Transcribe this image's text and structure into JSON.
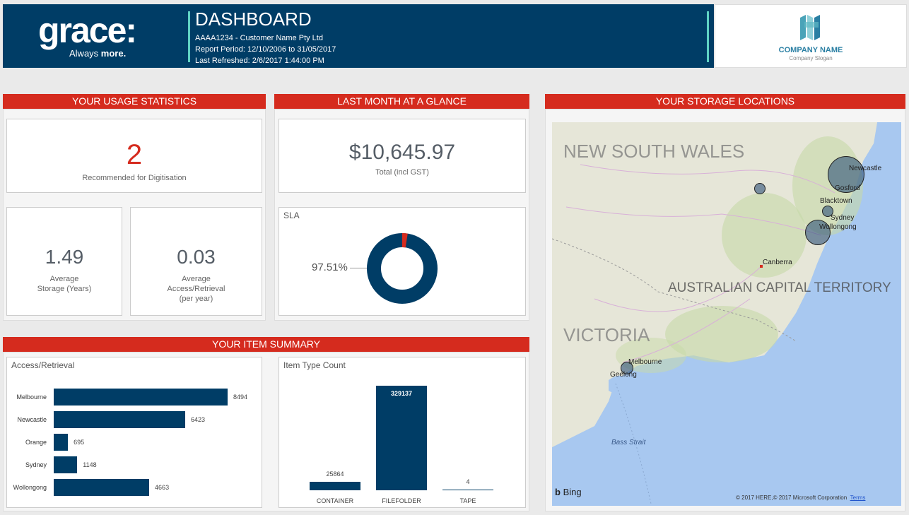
{
  "header": {
    "logo_word": "grace:",
    "logo_tagline_a": "Always ",
    "logo_tagline_b": "more.",
    "title": "DASHBOARD",
    "customer": "AAAA1234 - Customer Name Pty Ltd",
    "report_period": "Report Period:  12/10/2006    to    31/05/2017",
    "last_refreshed": "Last Refreshed: 2/6/2017 1:44:00 PM",
    "company_name": "COMPANY NAME",
    "company_slogan": "Company Slogan"
  },
  "usage": {
    "title": "YOUR USAGE STATISTICS",
    "recommended_value": "2",
    "recommended_label": "Recommended for Digitisation",
    "storage_value": "1.49",
    "storage_label_1": "Average",
    "storage_label_2": "Storage (Years)",
    "access_value": "0.03",
    "access_label_1": "Average",
    "access_label_2": "Access/Retrieval",
    "access_label_3": "(per year)"
  },
  "glance": {
    "title": "LAST MONTH AT A GLANCE",
    "total_value": "$10,645.97",
    "total_label": "Total (incl GST)",
    "sla_title": "SLA",
    "sla_percent_label": "97.51%",
    "sla_fraction": 0.9751
  },
  "storage": {
    "title": "YOUR STORAGE LOCATIONS",
    "regions": [
      "NEW SOUTH WALES",
      "AUSTRALIAN CAPITAL TERRITORY",
      "VICTORIA"
    ],
    "cities": [
      "Newcastle",
      "Gosford",
      "Blacktown",
      "Sydney",
      "Wollongong",
      "Canberra",
      "Melbourne",
      "Geelong"
    ],
    "water_label": "Bass Strait",
    "bing": "Bing",
    "copyright": "© 2017 HERE,© 2017 Microsoft Corporation",
    "terms": "Terms"
  },
  "items": {
    "title": "YOUR ITEM SUMMARY"
  },
  "chart_data": [
    {
      "type": "bar",
      "orientation": "horizontal",
      "title": "Access/Retrieval",
      "categories": [
        "Melbourne",
        "Newcastle",
        "Orange",
        "Sydney",
        "Wollongong"
      ],
      "values": [
        8494,
        6423,
        695,
        1148,
        4663
      ]
    },
    {
      "type": "bar",
      "title": "Item Type Count",
      "categories": [
        "CONTAINER",
        "FILEFOLDER",
        "TAPE"
      ],
      "values": [
        25864,
        329137,
        4
      ]
    }
  ],
  "colors": {
    "navy": "#003d66",
    "red": "#d52b1e",
    "teal": "#5fd3c4"
  }
}
